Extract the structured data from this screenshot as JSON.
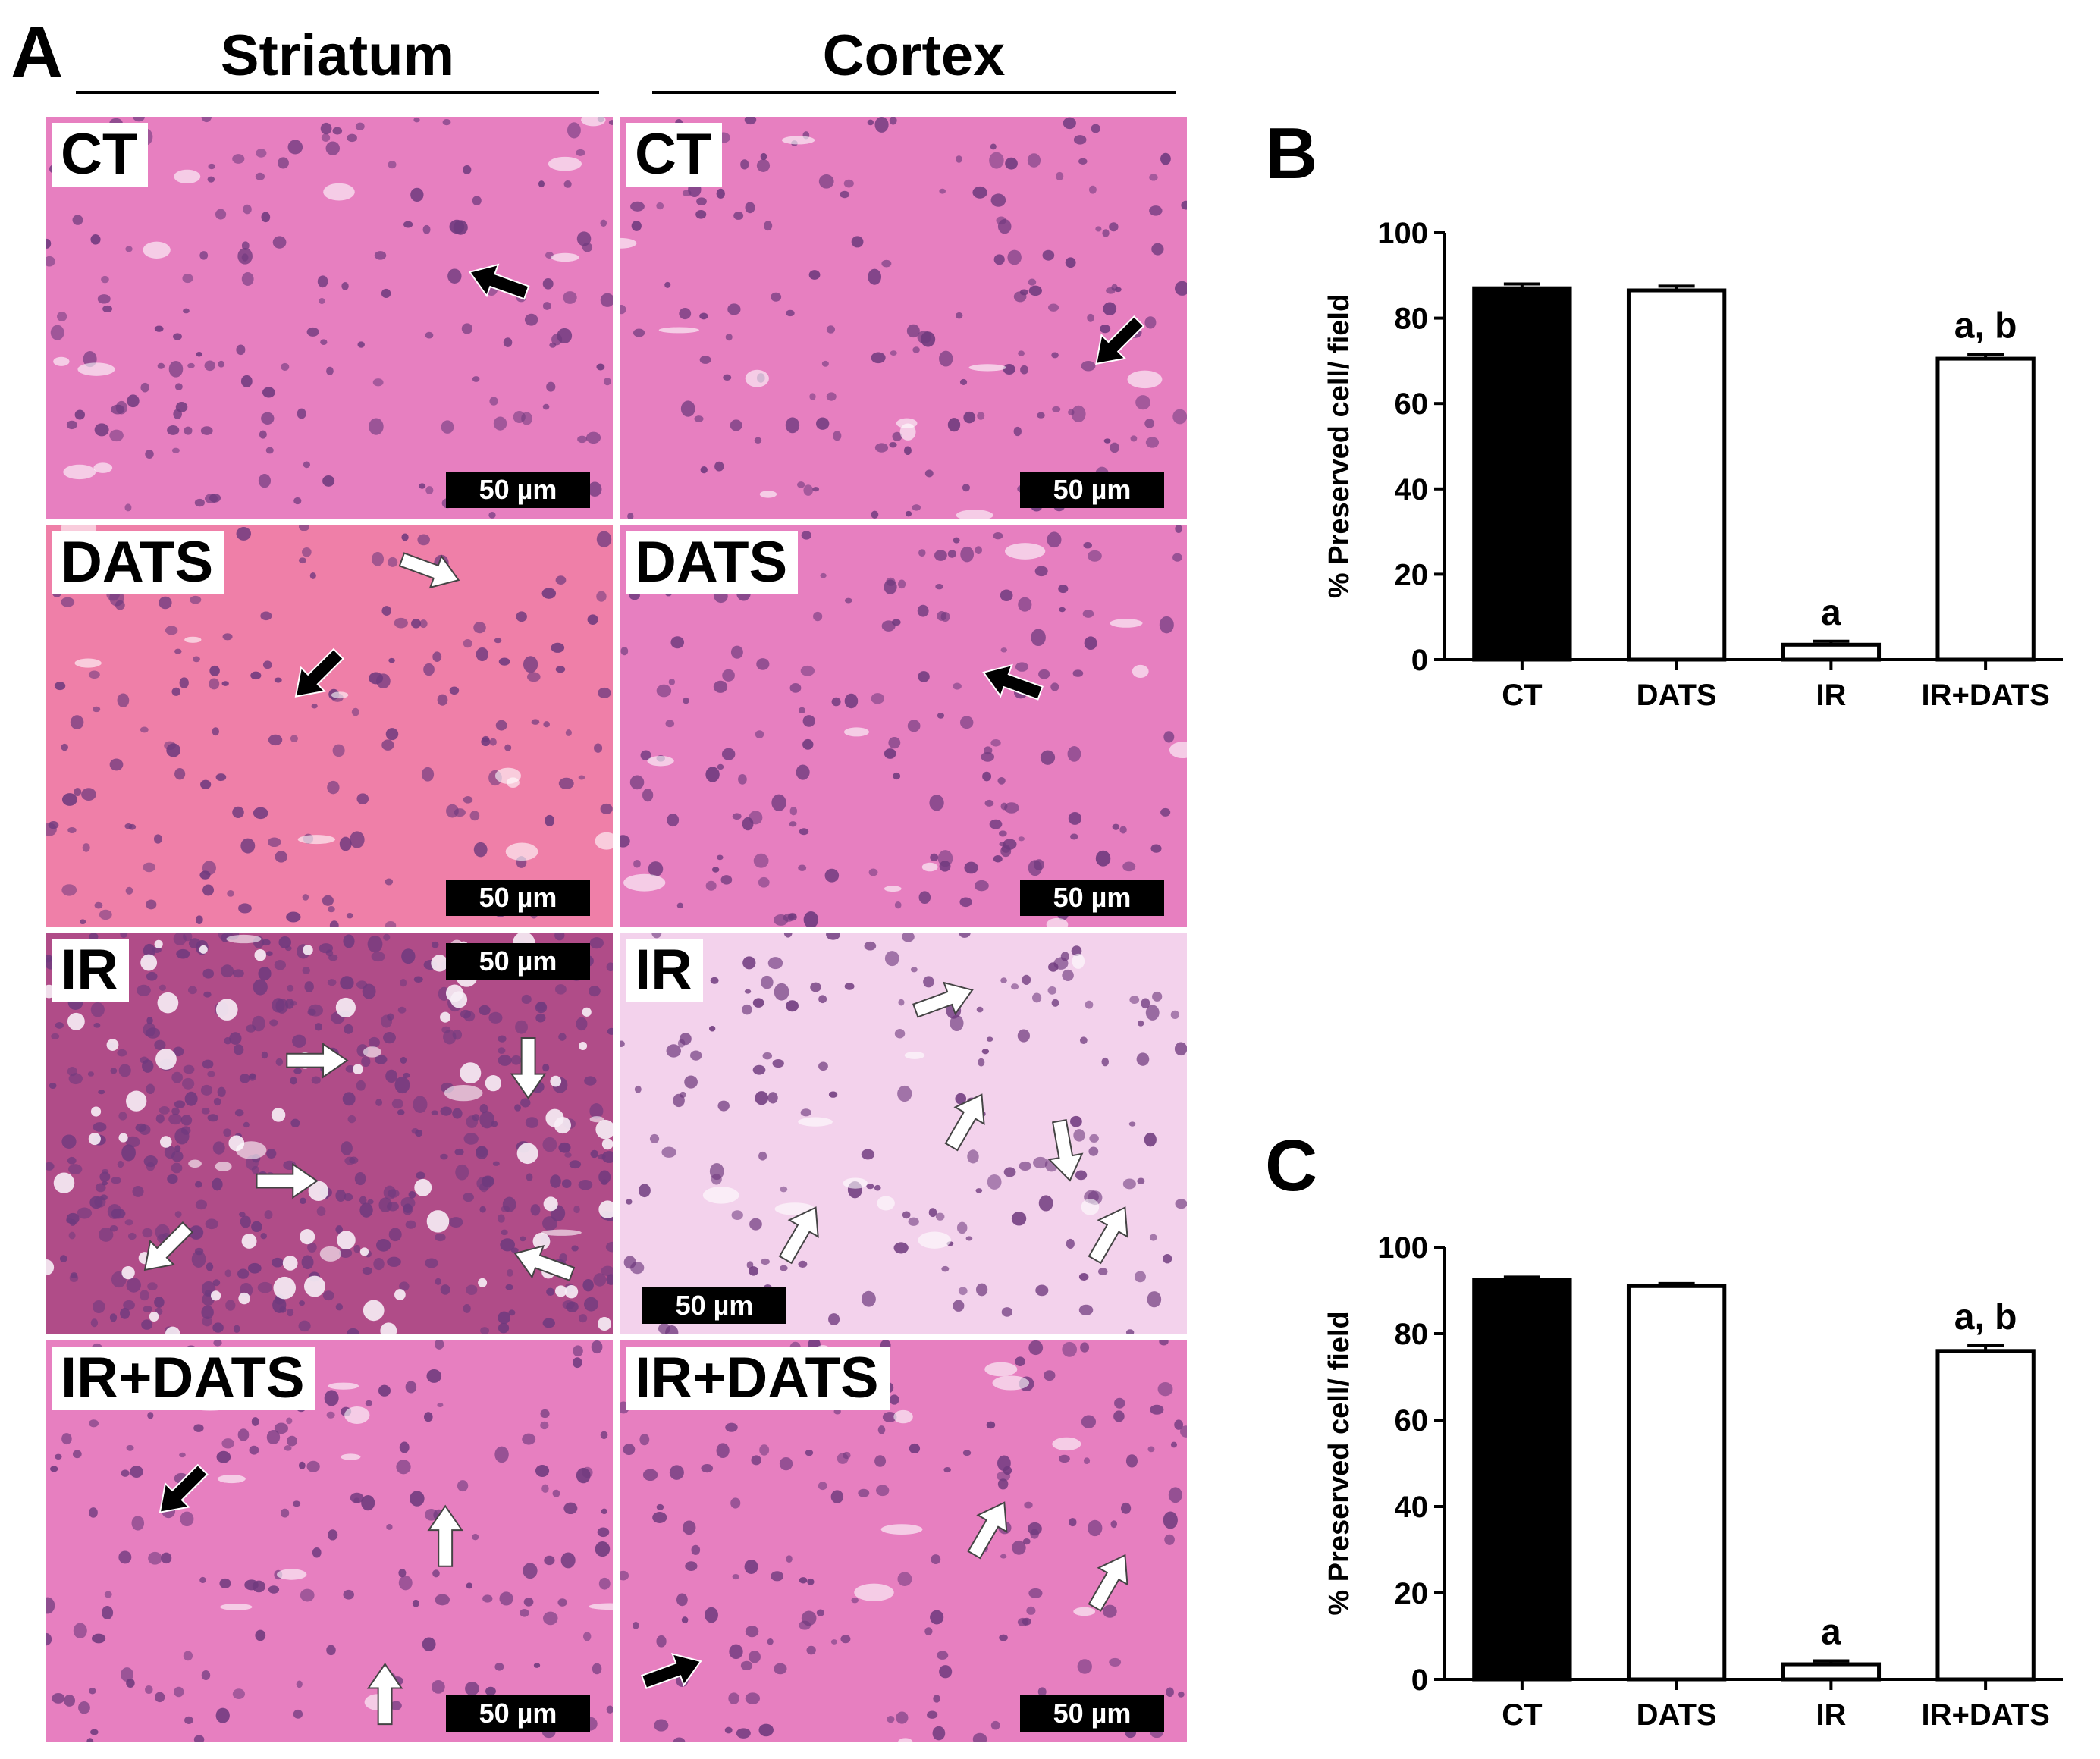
{
  "figure": {
    "panel_a_letter": "A",
    "panel_b_letter": "B",
    "panel_c_letter": "C",
    "columns": [
      {
        "title": "Striatum"
      },
      {
        "title": "Cortex"
      }
    ],
    "rows": [
      "CT",
      "DATS",
      "IR",
      "IR+DATS"
    ],
    "scale_bar_label": "50 µm",
    "stain_colors": {
      "normal_bg": "#e77fc0",
      "dats_striatum_bg": "#ef7fa8",
      "ir_striatum_bg": "#b04c88",
      "ir_cortex_bg": "#f3d2ec",
      "nucleus": "#6f3a7e"
    }
  },
  "chart_data": [
    {
      "panel": "B",
      "type": "bar",
      "categories": [
        "CT",
        "DATS",
        "IR",
        "IR+DATS"
      ],
      "values": [
        87,
        86.5,
        3.5,
        70.5
      ],
      "errors": [
        1,
        1,
        0.8,
        1
      ],
      "annotations": [
        "",
        "",
        "a",
        "a, b"
      ],
      "bar_fill": [
        "#000000",
        "#ffffff",
        "#ffffff",
        "#ffffff"
      ],
      "ylabel": "% Preserved cell/ field",
      "xlabel": "",
      "ylim": [
        0,
        100
      ],
      "yticks": [
        0,
        20,
        40,
        60,
        80,
        100
      ],
      "grid": false
    },
    {
      "panel": "C",
      "type": "bar",
      "categories": [
        "CT",
        "DATS",
        "IR",
        "IR+DATS"
      ],
      "values": [
        92.5,
        91,
        3.5,
        76
      ],
      "errors": [
        0.6,
        0.6,
        0.8,
        1.2
      ],
      "annotations": [
        "",
        "",
        "a",
        "a, b"
      ],
      "bar_fill": [
        "#000000",
        "#ffffff",
        "#ffffff",
        "#ffffff"
      ],
      "ylabel": "% Preserved cell/ field",
      "xlabel": "",
      "ylim": [
        0,
        100
      ],
      "yticks": [
        0,
        20,
        40,
        60,
        80,
        100
      ],
      "grid": false
    }
  ]
}
